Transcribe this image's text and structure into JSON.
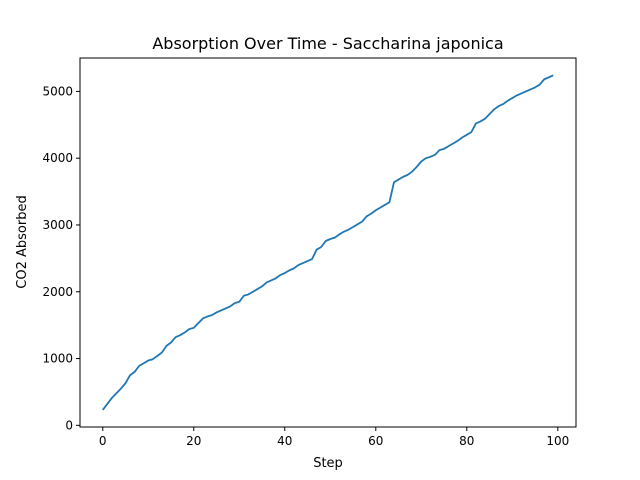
{
  "chart_data": {
    "type": "line",
    "title": "Absorption Over Time - Saccharina japonica",
    "xlabel": "Step",
    "ylabel": "CO2 Absorbed",
    "xlim": [
      -5,
      104
    ],
    "ylim": [
      -25,
      5500
    ],
    "xticks": [
      0,
      20,
      40,
      60,
      80,
      100
    ],
    "yticks": [
      0,
      1000,
      2000,
      3000,
      4000,
      5000
    ],
    "grid": false,
    "legend": "none",
    "series": [
      {
        "color": "#1f77b4",
        "x": [
          0,
          1,
          2,
          3,
          4,
          5,
          6,
          7,
          8,
          9,
          10,
          11,
          12,
          13,
          14,
          15,
          16,
          17,
          18,
          19,
          20,
          21,
          22,
          23,
          24,
          25,
          26,
          27,
          28,
          29,
          30,
          31,
          32,
          33,
          34,
          35,
          36,
          37,
          38,
          39,
          40,
          41,
          42,
          43,
          44,
          45,
          46,
          47,
          48,
          49,
          50,
          51,
          52,
          53,
          54,
          55,
          56,
          57,
          58,
          59,
          60,
          61,
          62,
          63,
          64,
          65,
          66,
          67,
          68,
          69,
          70,
          71,
          72,
          73,
          74,
          75,
          76,
          77,
          78,
          79,
          80,
          81,
          82,
          83,
          84,
          85,
          86,
          87,
          88,
          89,
          90,
          91,
          92,
          93,
          94,
          95,
          96,
          97,
          98,
          99
        ],
        "y": [
          230,
          320,
          410,
          480,
          550,
          630,
          750,
          800,
          890,
          930,
          970,
          990,
          1040,
          1090,
          1190,
          1240,
          1320,
          1350,
          1390,
          1440,
          1460,
          1530,
          1600,
          1630,
          1650,
          1690,
          1720,
          1750,
          1780,
          1830,
          1850,
          1940,
          1960,
          2000,
          2040,
          2080,
          2140,
          2170,
          2200,
          2250,
          2280,
          2320,
          2350,
          2400,
          2430,
          2460,
          2490,
          2630,
          2670,
          2760,
          2790,
          2810,
          2860,
          2900,
          2930,
          2970,
          3010,
          3050,
          3130,
          3170,
          3220,
          3260,
          3300,
          3340,
          3640,
          3680,
          3720,
          3750,
          3800,
          3870,
          3950,
          4000,
          4020,
          4050,
          4120,
          4140,
          4180,
          4220,
          4260,
          4310,
          4350,
          4390,
          4520,
          4550,
          4590,
          4660,
          4730,
          4780,
          4810,
          4860,
          4900,
          4940,
          4970,
          5000,
          5030,
          5060,
          5100,
          5180,
          5210,
          5240
        ]
      }
    ]
  }
}
